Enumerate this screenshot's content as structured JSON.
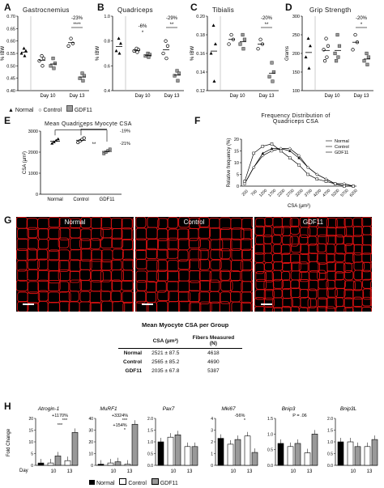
{
  "panels": {
    "A": {
      "letter": "A",
      "title": "Gastrocnemius",
      "ylabel": "% IBW",
      "yticks": [
        "0.70",
        "0.65",
        "0.60",
        "0.55",
        "0.50",
        "0.45",
        "0.40"
      ],
      "ylim": [
        0.4,
        0.7
      ],
      "xlabels": [
        "Day 10",
        "Day 13"
      ],
      "annots": [
        "-23%",
        "****"
      ]
    },
    "B": {
      "letter": "B",
      "title": "Quadriceps",
      "ylabel": "% IBW",
      "yticks": [
        "1.0",
        "0.8",
        "0.6",
        "0.4"
      ],
      "ylim": [
        0.4,
        1.0
      ],
      "xlabels": [
        "Day 10",
        "Day 13"
      ],
      "annots": [
        "-6%",
        "*",
        "-29%",
        "**"
      ]
    },
    "C": {
      "letter": "C",
      "title": "Tibialis",
      "ylabel": "% IBW",
      "yticks": [
        "0.20",
        "0.18",
        "0.16",
        "0.14",
        "0.12"
      ],
      "ylim": [
        0.12,
        0.2
      ],
      "xlabels": [
        "Day 10",
        "Day 13"
      ],
      "annots": [
        "-20%",
        "**"
      ]
    },
    "D": {
      "letter": "D",
      "title": "Grip Strength",
      "ylabel": "Grams",
      "yticks": [
        "300",
        "250",
        "200",
        "150",
        "100"
      ],
      "ylim": [
        100,
        300
      ],
      "xlabels": [
        "Day 10",
        "Day 13"
      ],
      "annots": [
        "-20%",
        "*"
      ]
    },
    "legend_top": [
      "Normal",
      "Control",
      "GDF11"
    ],
    "E": {
      "letter": "E",
      "title": "Mean Quadriceps Myocyte CSA",
      "ylabel": "CSA (µm²)",
      "yticks": [
        "3000",
        "2000",
        "1000",
        "0"
      ],
      "ylim": [
        0,
        3000
      ],
      "categories": [
        "Normal",
        "Control",
        "GDF11"
      ],
      "annots": [
        "**",
        "**",
        "-19%",
        "-21%"
      ]
    },
    "F": {
      "letter": "F",
      "title1": "Frequency Distribution of",
      "title2": "Quadriceps CSA",
      "ylabel": "Relative frequency (%)",
      "xlabel": "CSA (µm²)",
      "yticks": [
        "20",
        "15",
        "10",
        "5",
        "0"
      ],
      "ylim": [
        0,
        20
      ],
      "legend": [
        "Normal",
        "Control",
        "GDF11"
      ]
    },
    "G": {
      "letter": "G",
      "images": [
        "Normal",
        "Control",
        "GDF11"
      ],
      "table_title": "Mean Myocyte CSA per Group",
      "col_headers": [
        "CSA (µm²)",
        "Fibers Measured (N)"
      ],
      "rows": [
        {
          "group": "Normal",
          "csa": "2521 ± 87.5",
          "n": "4618"
        },
        {
          "group": "Control",
          "csa": "2565 ± 85.2",
          "n": "4690"
        },
        {
          "group": "GDF11",
          "csa": "2035 ± 67.8",
          "n": "5387"
        }
      ]
    },
    "H": {
      "letter": "H",
      "ylabel": "Fold Change",
      "day_label": "Day",
      "yticks": [
        "20",
        "15",
        "10",
        "5",
        "0"
      ],
      "genes": [
        "Atrogin-1",
        "MuRF1",
        "Pax7",
        "Mki67",
        "Bnip3",
        "Bnip3L"
      ],
      "xlabels": [
        "10",
        "13"
      ],
      "annots": {
        "Atrogin-1": [
          "+1170%",
          "***",
          "***"
        ],
        "MuRF1": [
          "+3324%",
          "***",
          "+154%",
          "*"
        ],
        "Mki67": [
          "-56%",
          "*"
        ],
        "Bnip3": [
          "P = .06"
        ]
      },
      "legend": [
        "Normal",
        "Control",
        "GDF11"
      ],
      "yticks_small": [
        "2.0",
        "1.5",
        "1.0",
        "0.5",
        "0.0"
      ],
      "yticks_mki": [
        "4",
        "3",
        "2",
        "1",
        "0"
      ],
      "yticks_bnip3": [
        "1.5",
        "1.0",
        "0.5",
        "0.0"
      ]
    }
  },
  "chart_data": [
    {
      "type": "scatter",
      "panel": "A",
      "title": "Gastrocnemius",
      "ylabel": "% IBW",
      "ylim": [
        0.4,
        0.7
      ],
      "groups": {
        "Normal": [
          0.57,
          0.56,
          0.55,
          0.54
        ],
        "Control D10": [
          0.54,
          0.53,
          0.52,
          0.5
        ],
        "GDF11 D10": [
          0.53,
          0.51,
          0.5,
          0.49
        ],
        "Control D13": [
          0.61,
          0.59,
          0.58
        ],
        "GDF11 D13": [
          0.47,
          0.46,
          0.45,
          0.44
        ]
      }
    },
    {
      "type": "scatter",
      "panel": "B",
      "title": "Quadriceps",
      "ylabel": "% IBW",
      "ylim": [
        0.4,
        1.0
      ],
      "groups": {
        "Normal": [
          0.82,
          0.78,
          0.72,
          0.7
        ],
        "Control D10": [
          0.74,
          0.73,
          0.72,
          0.71
        ],
        "GDF11 D10": [
          0.7,
          0.69,
          0.68,
          0.67
        ],
        "Control D13": [
          0.8,
          0.76,
          0.7,
          0.66
        ],
        "GDF11 D13": [
          0.56,
          0.54,
          0.52,
          0.48
        ]
      }
    },
    {
      "type": "scatter",
      "panel": "C",
      "title": "Tibialis",
      "ylabel": "% IBW",
      "ylim": [
        0.12,
        0.2
      ],
      "groups": {
        "Normal": [
          0.19,
          0.17,
          0.16,
          0.13
        ],
        "Control D10": [
          0.18,
          0.175,
          0.17
        ],
        "GDF11 D10": [
          0.18,
          0.175,
          0.17,
          0.165
        ],
        "Control D13": [
          0.175,
          0.17,
          0.165
        ],
        "GDF11 D13": [
          0.15,
          0.14,
          0.135,
          0.13
        ]
      }
    },
    {
      "type": "scatter",
      "panel": "D",
      "title": "Grip Strength",
      "ylabel": "Grams",
      "ylim": [
        100,
        300
      ],
      "groups": {
        "Normal": [
          240,
          220,
          190,
          160
        ],
        "Control D10": [
          240,
          220,
          210,
          190,
          180
        ],
        "GDF11 D10": [
          250,
          220,
          200,
          190,
          180
        ],
        "Control D13": [
          250,
          230,
          210
        ],
        "GDF11 D13": [
          200,
          190,
          180,
          170
        ]
      }
    },
    {
      "type": "scatter",
      "panel": "E",
      "title": "Mean Quadriceps Myocyte CSA",
      "ylabel": "CSA (µm²)",
      "ylim": [
        0,
        3000
      ],
      "categories": [
        "Normal",
        "Control",
        "GDF11"
      ],
      "values": [
        2521,
        2565,
        2035
      ]
    },
    {
      "type": "line",
      "panel": "F",
      "title": "Frequency Distribution of Quadriceps CSA",
      "xlabel": "CSA (µm²)",
      "ylabel": "Relative frequency (%)",
      "ylim": [
        0,
        20
      ],
      "x": [
        "200",
        "700",
        "1200",
        "1700",
        "2200",
        "2700",
        "3200",
        "3700",
        "4200",
        "4700",
        "5200",
        "5700",
        "6200"
      ],
      "series": [
        {
          "name": "Normal",
          "values": [
            1,
            8,
            14,
            16,
            16,
            15,
            12,
            8,
            5,
            3,
            1,
            1,
            0
          ]
        },
        {
          "name": "Control",
          "values": [
            1,
            8,
            13,
            15,
            16,
            16,
            13,
            8,
            5,
            3,
            1,
            1,
            0
          ]
        },
        {
          "name": "GDF11",
          "values": [
            2,
            14,
            17,
            18,
            15,
            12,
            9,
            5,
            3,
            2,
            1,
            0,
            0
          ]
        }
      ]
    },
    {
      "type": "bar",
      "panel": "H",
      "ylabel": "Fold Change",
      "genes": [
        {
          "name": "Atrogin-1",
          "values": [
            1,
            1,
            4,
            2,
            14
          ],
          "ylim": [
            0,
            20
          ]
        },
        {
          "name": "MuRF1",
          "values": [
            1,
            2,
            3,
            1,
            35
          ],
          "ylim": [
            0,
            40
          ]
        },
        {
          "name": "Pax7",
          "values": [
            1,
            1.2,
            1.3,
            0.8,
            0.8
          ],
          "ylim": [
            0,
            2
          ]
        },
        {
          "name": "Mki67",
          "values": [
            2.3,
            1.8,
            2.2,
            2.5,
            1.1
          ],
          "ylim": [
            0,
            4
          ]
        },
        {
          "name": "Bnip3",
          "values": [
            0.7,
            0.6,
            0.7,
            0.4,
            1.0
          ],
          "ylim": [
            0,
            1.5
          ]
        },
        {
          "name": "Bnip3L",
          "values": [
            1,
            1,
            0.8,
            0.8,
            1.1
          ],
          "ylim": [
            0,
            2
          ]
        }
      ]
    }
  ]
}
